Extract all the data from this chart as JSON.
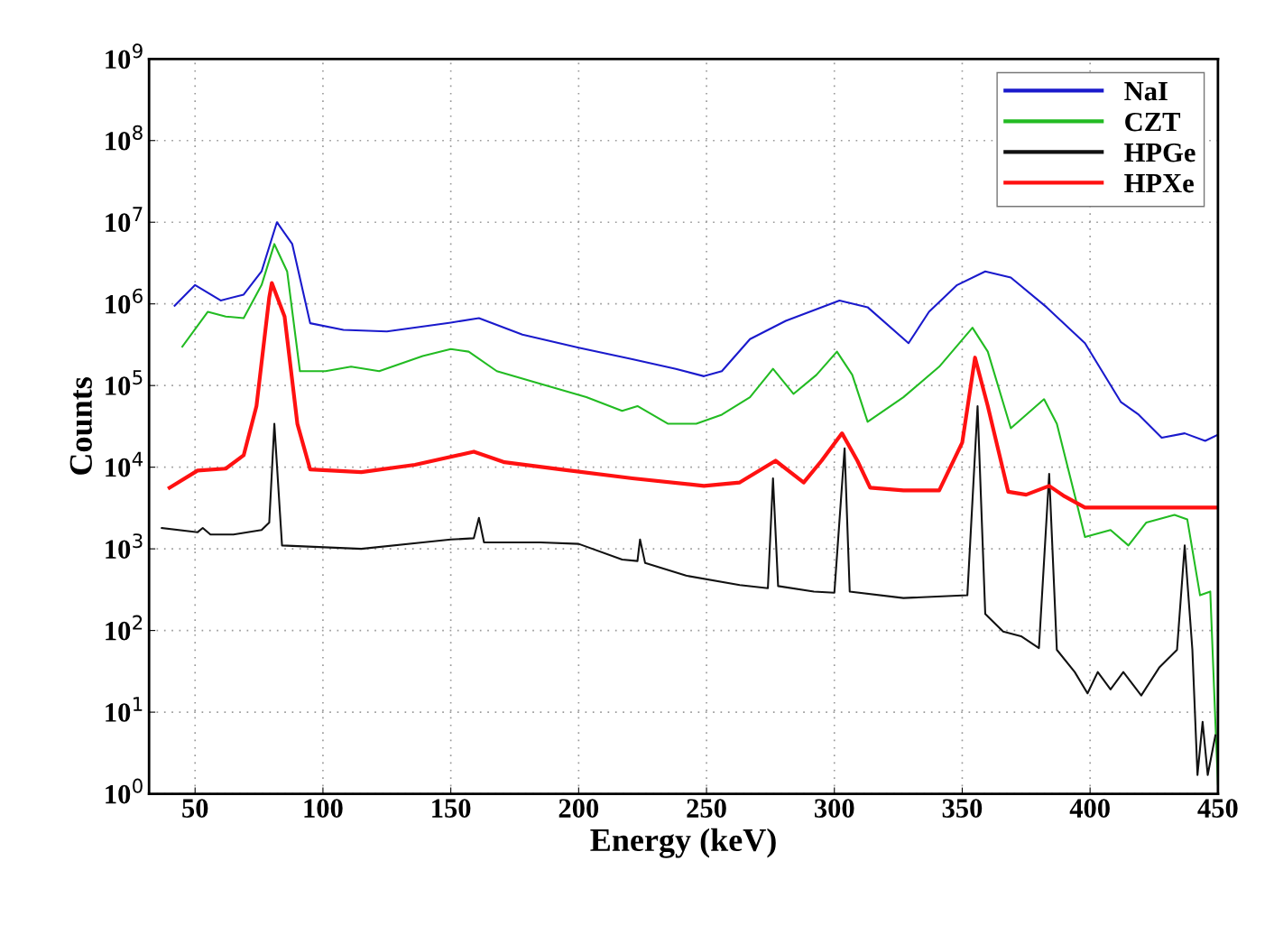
{
  "chart_data": {
    "type": "line",
    "xlabel": "Energy (keV)",
    "ylabel": "Counts",
    "log": "y",
    "grid": true,
    "legend": "top right",
    "xlim": [
      32,
      450
    ],
    "xticks": [
      50,
      100,
      150,
      200,
      250,
      300,
      350,
      400,
      450
    ],
    "ylim": [
      1,
      1000000000
    ],
    "yticks": [
      {
        "value": 1,
        "label": "10$^{0}$"
      },
      {
        "value": 10,
        "label": "10$^{1}$"
      },
      {
        "value": 100,
        "label": "10$^{2}$"
      },
      {
        "value": 1000,
        "label": "10$^{3}$"
      },
      {
        "value": 10000,
        "label": "10$^{4}$"
      },
      {
        "value": 100000,
        "label": "10$^{5}$"
      },
      {
        "value": 1000000,
        "label": "10$^{6}$"
      },
      {
        "value": 10000000,
        "label": "10$^{7}$"
      },
      {
        "value": 100000000,
        "label": "10$^{8}$"
      },
      {
        "value": 1000000000,
        "label": "10$^{9}$"
      }
    ],
    "series": [
      {
        "name": "NaI",
        "color": "#1a1acc",
        "x": [
          42,
          50,
          60,
          69,
          76,
          82,
          88,
          95,
          108,
          125,
          150,
          161,
          178,
          200,
          221,
          238,
          249,
          256,
          267,
          281,
          302,
          313,
          329,
          337,
          348,
          359,
          369,
          383,
          398,
          412,
          419,
          428,
          437,
          445,
          450
        ],
        "values": [
          950000,
          1700000,
          1100000,
          1300000,
          2500000,
          10000000,
          5400000,
          580000,
          480000,
          460000,
          590000,
          670000,
          420000,
          290000,
          210000,
          160000,
          130000,
          150000,
          370000,
          620000,
          1100000,
          910000,
          330000,
          800000,
          1700000,
          2500000,
          2100000,
          910000,
          330000,
          63000,
          44000,
          23000,
          26000,
          21000,
          25000
        ]
      },
      {
        "name": "CZT",
        "color": "#22bb22",
        "x": [
          45,
          55,
          62,
          69,
          76,
          81,
          86,
          91,
          101,
          111,
          122,
          139,
          150,
          157,
          168,
          185,
          203,
          217,
          223,
          235,
          246,
          256,
          267,
          276,
          284,
          293,
          301,
          307,
          313,
          327,
          341,
          354,
          360,
          369,
          382,
          387,
          395,
          398,
          408,
          415,
          422,
          433,
          438,
          443,
          447,
          449,
          450
        ],
        "values": [
          300000,
          800000,
          700000,
          670000,
          1700000,
          5400000,
          2500000,
          150000,
          150000,
          170000,
          150000,
          230000,
          280000,
          260000,
          150000,
          105000,
          72000,
          49000,
          56000,
          34000,
          34000,
          44000,
          72000,
          160000,
          79000,
          135000,
          260000,
          135000,
          36000,
          72000,
          170000,
          510000,
          260000,
          30000,
          68000,
          34000,
          3400,
          1400,
          1700,
          1100,
          2100,
          2600,
          2300,
          270,
          300,
          7.6,
          1.3
        ]
      },
      {
        "name": "HPGe",
        "color": "#111111",
        "x": [
          37,
          51,
          53,
          56,
          65,
          76,
          79,
          81,
          83,
          84,
          115,
          139,
          150,
          159,
          161,
          163,
          185,
          200,
          217,
          223,
          224,
          226,
          242,
          263,
          274,
          276,
          278,
          292,
          300,
          304,
          306,
          327,
          352,
          356,
          359,
          366,
          373,
          380,
          384,
          387,
          394,
          399,
          403,
          408,
          413,
          420,
          427,
          434,
          437,
          440,
          442,
          444,
          446,
          449
        ],
        "values": [
          1800,
          1600,
          1800,
          1500,
          1500,
          1700,
          2100,
          34000,
          3400,
          1100,
          1000,
          1200,
          1300,
          1350,
          2400,
          1200,
          1200,
          1150,
          740,
          710,
          1300,
          670,
          470,
          360,
          330,
          7300,
          350,
          300,
          290,
          17000,
          300,
          250,
          270,
          56000,
          160,
          97,
          85,
          61,
          8300,
          58,
          31,
          17,
          31,
          19,
          31,
          16,
          35,
          58,
          1100,
          58,
          1.7,
          7.6,
          1.7,
          5.2
        ]
      },
      {
        "name": "HPXe",
        "color": "#ff1111",
        "x": [
          40,
          51,
          62,
          69,
          74,
          79,
          80,
          85,
          90,
          95,
          115,
          136,
          159,
          171,
          193,
          221,
          249,
          263,
          277,
          288,
          295,
          303,
          309,
          314,
          327,
          341,
          350,
          355,
          360,
          368,
          375,
          384,
          390,
          398,
          450
        ],
        "values": [
          5600,
          9100,
          9600,
          14000,
          56000,
          1200000,
          1800000,
          700000,
          34000,
          9400,
          8700,
          10700,
          15500,
          11500,
          9400,
          7300,
          5900,
          6500,
          12000,
          6500,
          12000,
          26000,
          12000,
          5600,
          5200,
          5200,
          20000,
          220000,
          56000,
          5000,
          4600,
          5900,
          4400,
          3200,
          3200
        ]
      }
    ]
  }
}
